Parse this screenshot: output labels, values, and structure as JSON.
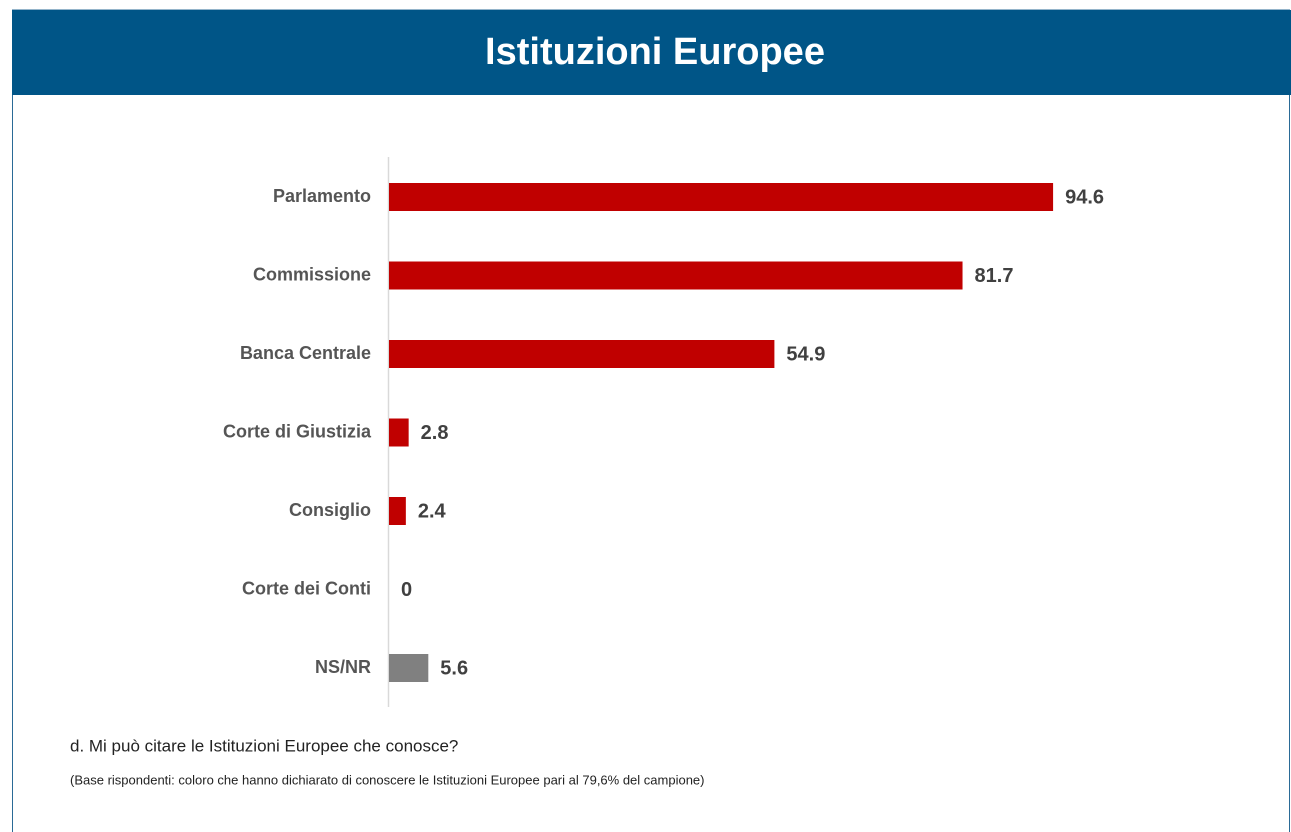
{
  "chart_data": {
    "type": "hbar",
    "title": "Istituzioni Europee",
    "categories": [
      "Parlamento",
      "Commissione",
      "Banca Centrale",
      "Corte di Giustizia",
      "Consiglio",
      "Corte dei Conti",
      "NS/NR"
    ],
    "values": [
      94.6,
      81.7,
      54.9,
      2.8,
      2.4,
      0,
      5.6
    ],
    "colors": [
      "#c00000",
      "#c00000",
      "#c00000",
      "#c00000",
      "#c00000",
      "#c00000",
      "#808080"
    ],
    "question": "d. Mi può citare le Istituzioni Europee che conosce?",
    "note": "(Base rispondenti: coloro che hanno dichiarato di conoscere le Istituzioni Europee pari al 79,6% del campione)"
  }
}
